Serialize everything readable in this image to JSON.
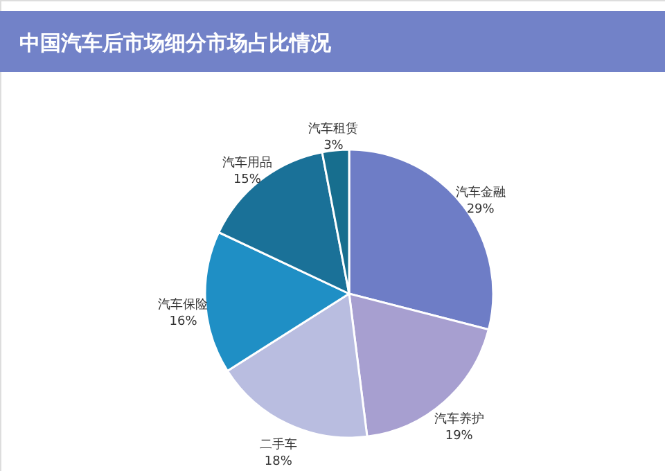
{
  "chart_data": {
    "type": "pie",
    "title": "中国汽车后市场细分市场占比情况",
    "categories": [
      "汽车金融",
      "汽车养护",
      "二手车",
      "汽车保险",
      "汽车用品",
      "汽车租赁"
    ],
    "values": [
      29,
      19,
      18,
      16,
      15,
      3
    ],
    "value_labels": [
      "29%",
      "19%",
      "18%",
      "16%",
      "15%",
      "3%"
    ],
    "colors": [
      "#6e7dc6",
      "#a79fd0",
      "#b9bde0",
      "#1f8fc5",
      "#1a7198",
      "#176e8e"
    ]
  }
}
